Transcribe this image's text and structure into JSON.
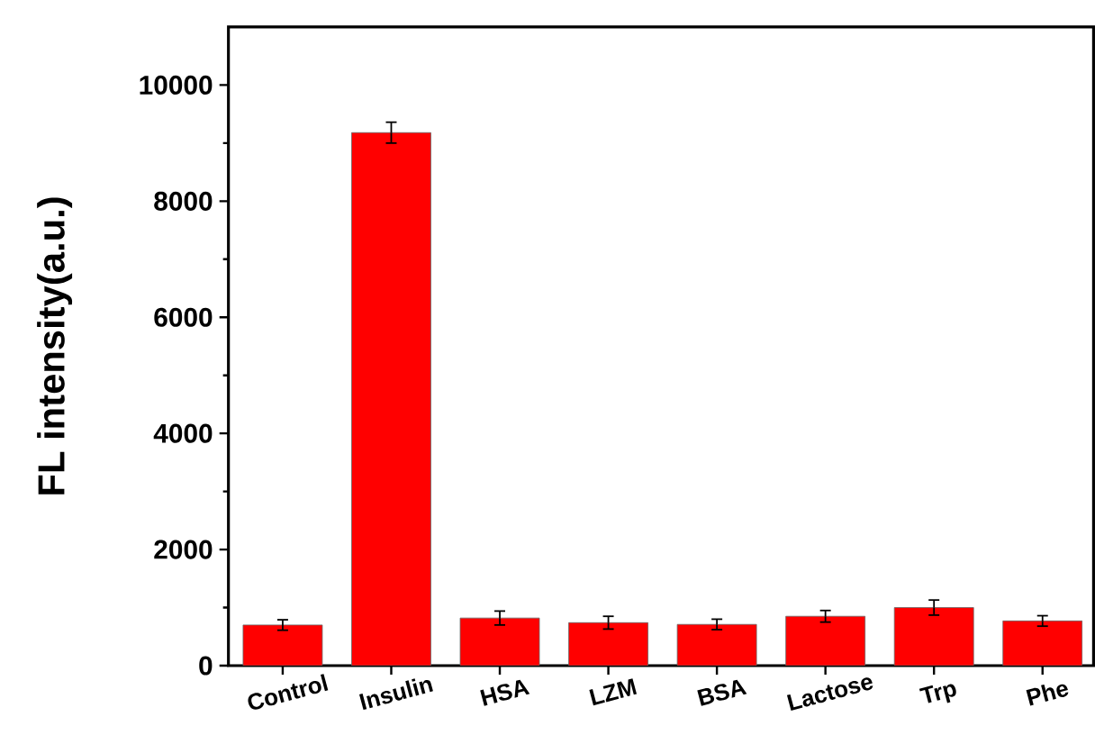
{
  "chart_data": {
    "type": "bar",
    "ylabel": "FL intensity(a.u.)",
    "categories": [
      "Control",
      "Insulin",
      "HSA",
      "LZM",
      "BSA",
      "Lactose",
      "Trp",
      "Phe"
    ],
    "values": [
      700,
      9180,
      820,
      740,
      710,
      850,
      1000,
      770
    ],
    "errors": [
      90,
      180,
      120,
      110,
      90,
      100,
      130,
      90
    ],
    "color": "#ff0000",
    "ylim": [
      0,
      11000
    ],
    "yticks": [
      0,
      2000,
      4000,
      6000,
      8000,
      10000
    ]
  }
}
